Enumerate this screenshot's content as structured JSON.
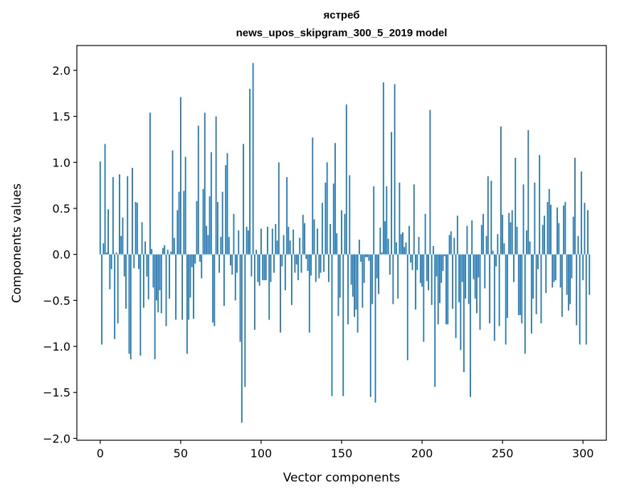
{
  "chart_data": {
    "type": "bar",
    "title": "ястреб",
    "subtitle": "news_upos_skipgram_300_5_2019 model",
    "xlabel": "Vector components",
    "ylabel": "Components values",
    "xlim": [
      -14.5,
      314.5
    ],
    "ylim": [
      -2.02,
      2.27
    ],
    "xticks": [
      0,
      50,
      100,
      150,
      200,
      250,
      300
    ],
    "yticks": [
      -2.0,
      -1.5,
      -1.0,
      -0.5,
      0.0,
      0.5,
      1.0,
      1.5,
      2.0
    ],
    "ytick_labels": [
      "−2.0",
      "−1.5",
      "−1.0",
      "−0.5",
      "0.0",
      "0.5",
      "1.0",
      "1.5",
      "2.0"
    ],
    "grid": false,
    "bar_color": "#1f77b4",
    "values": [
      1.01,
      -0.98,
      0.12,
      1.2,
      0.02,
      0.49,
      -0.38,
      -0.16,
      0.84,
      -0.92,
      0.02,
      -0.75,
      0.87,
      0.2,
      0.4,
      -0.24,
      -0.59,
      0.85,
      -1.08,
      -1.14,
      0.94,
      -0.15,
      0.57,
      0.56,
      -0.16,
      -1.1,
      0.35,
      -0.58,
      0.14,
      -0.24,
      -0.49,
      1.54,
      0.06,
      -0.36,
      -1.14,
      -0.5,
      -0.63,
      -0.39,
      -0.64,
      0.07,
      0.1,
      -0.78,
      0.05,
      -0.48,
      0.03,
      1.13,
      0.18,
      -0.71,
      0.48,
      0.68,
      1.71,
      -0.71,
      0.69,
      1.06,
      -1.08,
      -0.71,
      -0.47,
      -0.14,
      -0.7,
      -0.1,
      0.58,
      1.4,
      -0.08,
      -0.26,
      0.71,
      1.54,
      0.31,
      0.21,
      0.63,
      1.11,
      -0.74,
      -0.78,
      1.5,
      0.57,
      -0.2,
      0.19,
      0.68,
      -0.56,
      0.97,
      1.1,
      0.19,
      -0.12,
      -0.22,
      0.44,
      -0.5,
      -0.2,
      0.26,
      -0.95,
      -1.83,
      1.2,
      -1.44,
      0.3,
      0.26,
      1.8,
      -0.24,
      2.08,
      -0.82,
      0.05,
      -0.3,
      -0.34,
      0.28,
      -0.28,
      -0.28,
      -0.28,
      0.3,
      -0.71,
      -0.3,
      0.28,
      -0.2,
      0.33,
      0.15,
      1.0,
      -0.85,
      -0.13,
      0.21,
      -0.39,
      0.84,
      0.3,
      0.15,
      -0.55,
      0.27,
      -0.2,
      -0.11,
      -0.28,
      0.18,
      -0.2,
      0.43,
      0.34,
      -0.05,
      -0.18,
      -0.85,
      -0.23,
      1.27,
      0.38,
      -0.3,
      0.28,
      -0.26,
      -0.2,
      0.56,
      -0.19,
      0.78,
      1.0,
      -0.3,
      0.33,
      -1.54,
      0.77,
      1.21,
      0.23,
      -0.67,
      -0.47,
      0.48,
      -1.54,
      0.44,
      1.63,
      -0.76,
      0.86,
      -0.33,
      -0.46,
      -0.68,
      -0.6,
      -0.85,
      0.16,
      -0.08,
      -0.58,
      -0.31,
      -0.03,
      -0.03,
      -0.07,
      -1.55,
      -0.54,
      0.74,
      -1.61,
      -0.26,
      -0.43,
      0.29,
      0.02,
      1.87,
      0.36,
      0.74,
      0.17,
      -0.22,
      1.33,
      -0.54,
      1.85,
      0.13,
      -0.48,
      0.78,
      0.22,
      0.24,
      0.08,
      0.13,
      -1.15,
      0.31,
      -0.09,
      -0.17,
      0.76,
      -0.6,
      -0.17,
      0.19,
      -0.31,
      -0.35,
      -0.95,
      0.44,
      -0.29,
      -0.39,
      1.57,
      -0.55,
      0.09,
      -1.44,
      -0.24,
      -0.76,
      -0.53,
      -0.31,
      -0.18,
      -0.02,
      -0.76,
      -0.76,
      0.21,
      0.25,
      -0.59,
      0.18,
      -0.91,
      0.42,
      -0.52,
      -1.04,
      -0.3,
      -1.28,
      -0.48,
      0.31,
      -0.54,
      -1.55,
      0.37,
      -0.27,
      -0.48,
      -0.64,
      -0.25,
      -0.82,
      0.32,
      0.44,
      -0.37,
      0.2,
      0.85,
      -0.75,
      0.8,
      0.04,
      -0.94,
      -0.13,
      0.22,
      -0.78,
      1.39,
      0.43,
      0.12,
      -0.98,
      -0.69,
      0.45,
      0.35,
      0.48,
      -0.3,
      1.05,
      0.3,
      -0.66,
      -0.66,
      -0.75,
      0.76,
      -1.08,
      0.26,
      1.35,
      0.14,
      -0.86,
      -0.48,
      0.78,
      -0.65,
      -0.16,
      1.08,
      -0.75,
      0.32,
      0.42,
      -0.42,
      0.57,
      0.71,
      0.54,
      -0.36,
      -0.3,
      -0.28,
      0.51,
      0.34,
      -0.36,
      -0.68,
      0.53,
      0.57,
      -0.44,
      -0.61,
      -0.54,
      -0.26,
      0.41,
      1.05,
      -0.77,
      0.2,
      -0.98,
      0.9,
      -0.28,
      0.56,
      -0.98,
      0.48,
      -0.44
    ]
  }
}
